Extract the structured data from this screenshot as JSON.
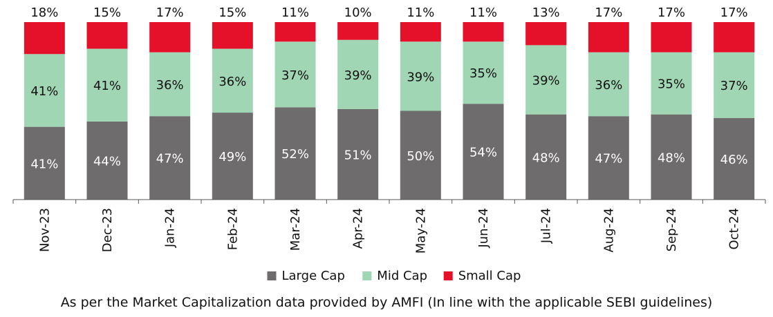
{
  "chart_data": {
    "type": "bar",
    "stacked": true,
    "categories": [
      "Nov-23",
      "Dec-23",
      "Jan-24",
      "Feb-24",
      "Mar-24",
      "Apr-24",
      "May-24",
      "Jun-24",
      "Jul-24",
      "Aug-24",
      "Sep-24",
      "Oct-24"
    ],
    "series": [
      {
        "name": "Large Cap",
        "color": "#6e6c6c",
        "label_color": "#ffffff",
        "values": [
          41,
          44,
          47,
          49,
          52,
          51,
          50,
          54,
          48,
          47,
          48,
          46
        ],
        "labels": [
          "41%",
          "44%",
          "47%",
          "49%",
          "52%",
          "51%",
          "50%",
          "54%",
          "48%",
          "47%",
          "48%",
          "46%"
        ]
      },
      {
        "name": "Mid Cap",
        "color": "#a0d6b4",
        "label_color": "#111111",
        "values": [
          41,
          41,
          36,
          36,
          37,
          39,
          39,
          35,
          39,
          36,
          35,
          37
        ],
        "labels": [
          "41%",
          "41%",
          "36%",
          "36%",
          "37%",
          "39%",
          "39%",
          "35%",
          "39%",
          "36%",
          "35%",
          "37%"
        ]
      },
      {
        "name": "Small Cap",
        "color": "#e5102a",
        "label_color": "#111111",
        "values": [
          18,
          15,
          17,
          15,
          11,
          10,
          11,
          11,
          13,
          17,
          17,
          17
        ],
        "labels": [
          "18%",
          "15%",
          "17%",
          "15%",
          "11%",
          "10%",
          "11%",
          "11%",
          "13%",
          "17%",
          "17%",
          "17%"
        ]
      }
    ],
    "ylim": [
      0,
      100
    ],
    "grid": false,
    "legend": "bottom-center",
    "footnote": "As per the Market Capitalization data provided by AMFI (In line with the applicable SEBI guidelines)"
  }
}
